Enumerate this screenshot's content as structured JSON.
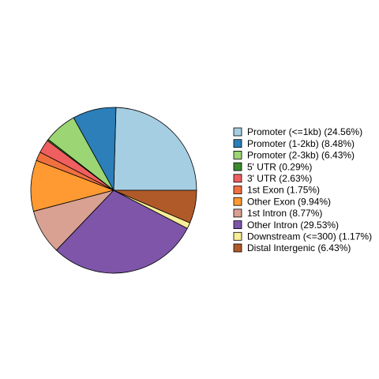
{
  "chart_data": {
    "type": "pie",
    "categories": [
      "Promoter (<=1kb) (24.56%)",
      "Promoter (1-2kb) (8.48%)",
      "Promoter (2-3kb) (6.43%)",
      "5' UTR (0.29%)",
      "3' UTR (2.63%)",
      "1st Exon (1.75%)",
      "Other Exon (9.94%)",
      "1st Intron (8.77%)",
      "Other Intron (29.53%)",
      "Downstream (<=300) (1.17%)",
      "Distal Intergenic (6.43%)"
    ],
    "values": [
      24.56,
      8.48,
      6.43,
      0.29,
      2.63,
      1.75,
      9.94,
      8.77,
      29.53,
      1.17,
      6.43
    ],
    "colors": [
      "#A6CEE3",
      "#2C7FB8",
      "#9CD574",
      "#3B8A2E",
      "#EF5F5F",
      "#F0703F",
      "#FF9A33",
      "#D9A192",
      "#7E55A8",
      "#F7EE98",
      "#B15A29"
    ]
  }
}
